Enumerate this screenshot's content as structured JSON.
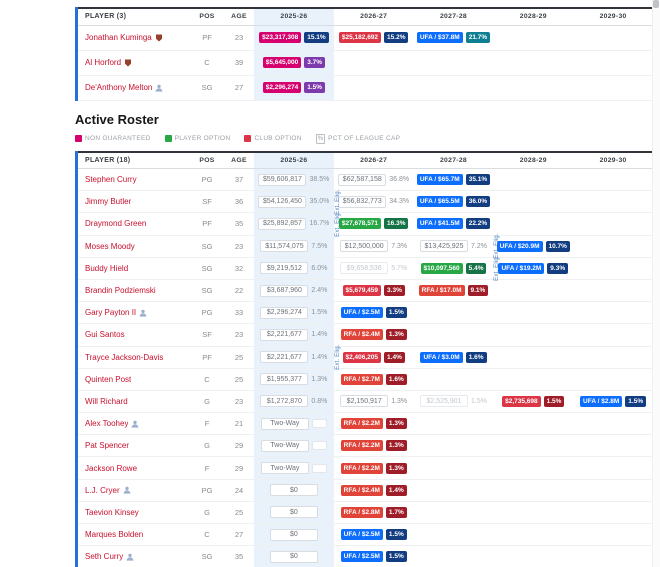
{
  "section_title": "Active Roster",
  "labels": {
    "ext_elig": "Ext. Elig.",
    "pct_icon": "%"
  },
  "colors": {
    "accent_blue": "#2472d8",
    "link_red": "#c8102e",
    "ng": "#d6006f",
    "club": "#dc3545",
    "po": "#28a745",
    "ufa": "#0d6efd",
    "rfa": "#e04338",
    "pct_navy": "#123d80",
    "pct_green": "#157347",
    "pct_red": "#9f1d28",
    "pct_teal": "#0f7f93",
    "pct_purple": "#7c3aad",
    "col_highlight": "#e9f2fb"
  },
  "legend": [
    {
      "swatch": "ng",
      "label": "NON GUARANTEED"
    },
    {
      "swatch": "po",
      "label": "PLAYER OPTION"
    },
    {
      "swatch": "club",
      "label": "CLUB OPTION"
    },
    {
      "icon": "pct",
      "label": "PCT OF LEAGUE CAP"
    }
  ],
  "tables": [
    {
      "id": "pending",
      "player_header": "PLAYER (3)",
      "col_headers": [
        "POS",
        "AGE"
      ],
      "year_headers": [
        "2025-26",
        "2026-27",
        "2027-28",
        "2028-29",
        "2029-30"
      ],
      "rows": [
        {
          "player": "Jonathan Kuminga",
          "icon": "tag",
          "pos": "PF",
          "age": "23",
          "years": [
            {
              "salary": "$23,317,308",
              "stype": "ng",
              "pct": "15.1%",
              "ptype": "navy"
            },
            {
              "salary": "$25,182,692",
              "stype": "club",
              "pct": "15.2%",
              "ptype": "navy"
            },
            {
              "salary": "UFA / $37.8M",
              "stype": "ufa",
              "pct": "21.7%",
              "ptype": "teal"
            },
            {},
            {}
          ]
        },
        {
          "player": "Al Horford",
          "icon": "tag",
          "pos": "C",
          "age": "39",
          "years": [
            {
              "salary": "$5,645,000",
              "stype": "ng",
              "pct": "3.7%",
              "ptype": "purple"
            },
            {},
            {},
            {},
            {}
          ]
        },
        {
          "player": "De'Anthony Melton",
          "icon": "person",
          "pos": "SG",
          "age": "27",
          "years": [
            {
              "salary": "$2,296,274",
              "stype": "ng",
              "pct": "1.5%",
              "ptype": "purple"
            },
            {},
            {},
            {},
            {}
          ]
        }
      ]
    },
    {
      "id": "active",
      "player_header": "PLAYER (18)",
      "col_headers": [
        "POS",
        "AGE"
      ],
      "year_headers": [
        "2025-26",
        "2026-27",
        "2027-28",
        "2028-29",
        "2029-30"
      ],
      "rows": [
        {
          "player": "Stephen Curry",
          "pos": "PG",
          "age": "37",
          "years": [
            {
              "salary": "$59,606,817",
              "stype": "plain",
              "pct": "38.5%",
              "ptype": "plain"
            },
            {
              "salary": "$62,587,158",
              "stype": "plain",
              "pct": "36.8%",
              "ptype": "plain"
            },
            {
              "salary": "UFA / $65.7M",
              "stype": "ufa",
              "pct": "35.1%",
              "ptype": "navy"
            },
            {},
            {}
          ]
        },
        {
          "player": "Jimmy Butler",
          "pos": "SF",
          "age": "36",
          "years": [
            {
              "salary": "$54,126,450",
              "stype": "plain",
              "pct": "35.0%",
              "ptype": "plain"
            },
            {
              "salary": "$56,832,773",
              "stype": "plain",
              "pct": "34.3%",
              "ptype": "plain",
              "ext": true
            },
            {
              "salary": "UFA / $65.5M",
              "stype": "ufa",
              "pct": "36.0%",
              "ptype": "navy"
            },
            {},
            {}
          ]
        },
        {
          "player": "Draymond Green",
          "pos": "PF",
          "age": "35",
          "years": [
            {
              "salary": "$25,892,857",
              "stype": "plain",
              "pct": "16.7%",
              "ptype": "plain"
            },
            {
              "salary": "$27,678,571",
              "stype": "po",
              "pct": "16.3%",
              "ptype": "green",
              "ext": true
            },
            {
              "salary": "UFA / $41.5M",
              "stype": "ufa",
              "pct": "22.2%",
              "ptype": "navy"
            },
            {},
            {}
          ]
        },
        {
          "player": "Moses Moody",
          "pos": "SG",
          "age": "23",
          "years": [
            {
              "salary": "$11,574,075",
              "stype": "plain",
              "pct": "7.5%",
              "ptype": "plain"
            },
            {
              "salary": "$12,500,000",
              "stype": "plain",
              "pct": "7.3%",
              "ptype": "plain"
            },
            {
              "salary": "$13,425,925",
              "stype": "plain",
              "pct": "7.2%",
              "ptype": "plain"
            },
            {
              "salary": "UFA / $20.9M",
              "stype": "ufa",
              "pct": "10.7%",
              "ptype": "navy",
              "ext": true
            },
            {}
          ]
        },
        {
          "player": "Buddy Hield",
          "pos": "SG",
          "age": "32",
          "years": [
            {
              "salary": "$9,219,512",
              "stype": "plain",
              "pct": "6.0%",
              "ptype": "plain"
            },
            {
              "salary": "$9,658,536",
              "stype": "muted",
              "pct": "5.7%",
              "ptype": "muted"
            },
            {
              "salary": "$10,097,560",
              "stype": "po",
              "pct": "5.4%",
              "ptype": "green"
            },
            {
              "salary": "UFA / $19.2M",
              "stype": "ufa",
              "pct": "9.3%",
              "ptype": "navy",
              "ext": true
            },
            {}
          ]
        },
        {
          "player": "Brandin Podziemski",
          "pos": "SG",
          "age": "22",
          "years": [
            {
              "salary": "$3,687,960",
              "stype": "plain",
              "pct": "2.4%",
              "ptype": "plain"
            },
            {
              "salary": "$5,679,459",
              "stype": "club",
              "pct": "3.3%",
              "ptype": "red"
            },
            {
              "salary": "RFA / $17.0M",
              "stype": "rfa",
              "pct": "9.1%",
              "ptype": "red"
            },
            {},
            {}
          ]
        },
        {
          "player": "Gary Payton II",
          "icon": "person",
          "pos": "PG",
          "age": "33",
          "years": [
            {
              "salary": "$2,296,274",
              "stype": "plain",
              "pct": "1.5%",
              "ptype": "plain"
            },
            {
              "salary": "UFA / $2.5M",
              "stype": "ufa",
              "pct": "1.5%",
              "ptype": "navy"
            },
            {},
            {},
            {}
          ]
        },
        {
          "player": "Gui Santos",
          "pos": "SF",
          "age": "23",
          "years": [
            {
              "salary": "$2,221,677",
              "stype": "plain",
              "pct": "1.4%",
              "ptype": "plain"
            },
            {
              "salary": "RFA / $2.4M",
              "stype": "rfa",
              "pct": "1.3%",
              "ptype": "red"
            },
            {},
            {},
            {}
          ]
        },
        {
          "player": "Trayce Jackson-Davis",
          "pos": "PF",
          "age": "25",
          "years": [
            {
              "salary": "$2,221,677",
              "stype": "plain",
              "pct": "1.4%",
              "ptype": "plain"
            },
            {
              "salary": "$2,406,205",
              "stype": "club",
              "pct": "1.4%",
              "ptype": "red",
              "ext": true
            },
            {
              "salary": "UFA / $3.0M",
              "stype": "ufa",
              "pct": "1.6%",
              "ptype": "navy"
            },
            {},
            {}
          ]
        },
        {
          "player": "Quinten Post",
          "pos": "C",
          "age": "25",
          "years": [
            {
              "salary": "$1,955,377",
              "stype": "plain",
              "pct": "1.3%",
              "ptype": "plain"
            },
            {
              "salary": "RFA / $2.7M",
              "stype": "rfa",
              "pct": "1.6%",
              "ptype": "red"
            },
            {},
            {},
            {}
          ]
        },
        {
          "player": "Will Richard",
          "pos": "G",
          "age": "23",
          "years": [
            {
              "salary": "$1,272,870",
              "stype": "plain",
              "pct": "0.8%",
              "ptype": "plain"
            },
            {
              "salary": "$2,150,917",
              "stype": "plain",
              "pct": "1.3%",
              "ptype": "plain"
            },
            {
              "salary": "$2,525,901",
              "stype": "muted",
              "pct": "1.5%",
              "ptype": "muted"
            },
            {
              "salary": "$2,735,698",
              "stype": "club",
              "pct": "1.5%",
              "ptype": "red"
            },
            {
              "salary": "UFA / $2.8M",
              "stype": "ufa",
              "pct": "1.5%",
              "ptype": "navy"
            }
          ]
        },
        {
          "player": "Alex Toohey",
          "icon": "person",
          "pos": "F",
          "age": "21",
          "years": [
            {
              "salary": "Two-Way",
              "stype": "twoway",
              "ptype": "empty"
            },
            {
              "salary": "RFA / $2.2M",
              "stype": "rfa",
              "pct": "1.3%",
              "ptype": "red"
            },
            {},
            {},
            {}
          ]
        },
        {
          "player": "Pat Spencer",
          "pos": "G",
          "age": "29",
          "years": [
            {
              "salary": "Two-Way",
              "stype": "twoway",
              "ptype": "empty"
            },
            {
              "salary": "RFA / $2.2M",
              "stype": "rfa",
              "pct": "1.3%",
              "ptype": "red"
            },
            {},
            {},
            {}
          ]
        },
        {
          "player": "Jackson Rowe",
          "pos": "F",
          "age": "29",
          "years": [
            {
              "salary": "Two-Way",
              "stype": "twoway",
              "ptype": "empty"
            },
            {
              "salary": "RFA / $2.2M",
              "stype": "rfa",
              "pct": "1.3%",
              "ptype": "red"
            },
            {},
            {},
            {}
          ]
        },
        {
          "player": "L.J. Cryer",
          "icon": "person",
          "pos": "PG",
          "age": "24",
          "years": [
            {
              "salary": "$0",
              "stype": "zero"
            },
            {
              "salary": "RFA / $2.4M",
              "stype": "rfa",
              "pct": "1.4%",
              "ptype": "red"
            },
            {},
            {},
            {}
          ]
        },
        {
          "player": "Taevion Kinsey",
          "pos": "G",
          "age": "25",
          "years": [
            {
              "salary": "$0",
              "stype": "zero"
            },
            {
              "salary": "RFA / $2.8M",
              "stype": "rfa",
              "pct": "1.7%",
              "ptype": "red"
            },
            {},
            {},
            {}
          ]
        },
        {
          "player": "Marques Bolden",
          "pos": "C",
          "age": "27",
          "years": [
            {
              "salary": "$0",
              "stype": "zero"
            },
            {
              "salary": "UFA / $2.5M",
              "stype": "ufa",
              "pct": "1.5%",
              "ptype": "navy"
            },
            {},
            {},
            {}
          ]
        },
        {
          "player": "Seth Curry",
          "icon": "person",
          "pos": "SG",
          "age": "35",
          "years": [
            {
              "salary": "$0",
              "stype": "zero"
            },
            {
              "salary": "UFA / $2.5M",
              "stype": "ufa",
              "pct": "1.5%",
              "ptype": "navy"
            },
            {},
            {},
            {}
          ]
        }
      ]
    }
  ]
}
